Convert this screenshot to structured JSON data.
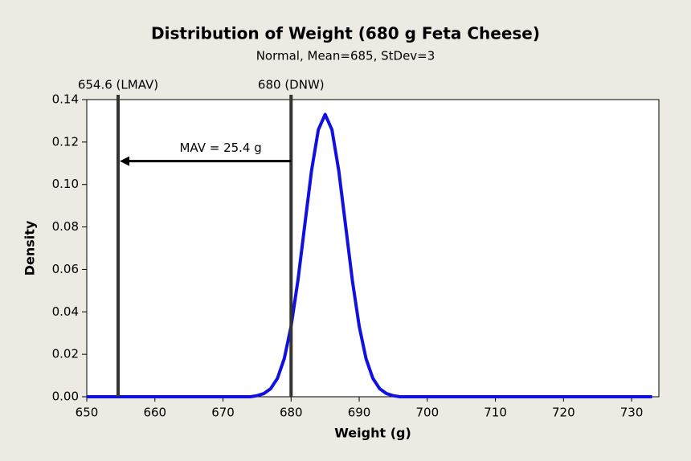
{
  "chart_data": {
    "type": "line",
    "title": "Distribution of Weight (680 g Feta Cheese)",
    "subtitle": "Normal, Mean=685, StDev=3",
    "x_label": "Weight (g)",
    "y_label": "Density",
    "color": "#1010e0",
    "x": [
      650,
      674,
      675,
      676,
      677,
      678,
      679,
      680,
      681,
      682,
      683,
      684,
      685,
      686,
      687,
      688,
      689,
      690,
      691,
      692,
      693,
      694,
      695,
      696,
      733
    ],
    "values": [
      0,
      0,
      0.0005,
      0.0015,
      0.0038,
      0.0087,
      0.018,
      0.0332,
      0.0547,
      0.0807,
      0.1065,
      0.1258,
      0.133,
      0.1258,
      0.1065,
      0.0807,
      0.0547,
      0.0332,
      0.018,
      0.0087,
      0.0038,
      0.0015,
      0.0005,
      0,
      0
    ],
    "xlim": [
      650,
      734
    ],
    "ylim": [
      0,
      0.14
    ],
    "xticks": [
      650,
      660,
      670,
      680,
      690,
      700,
      710,
      720,
      730
    ],
    "yticks": [
      {
        "value": 0,
        "label": "0.00"
      },
      0.02,
      0.04,
      0.06,
      0.08,
      {
        "value": 0.1,
        "label": "0.10"
      },
      0.12,
      0.14
    ],
    "reference_lines": [
      {
        "value": 654.6,
        "label": "654.6 (LMAV)"
      },
      {
        "value": 680,
        "label": "680 (DNW)"
      }
    ],
    "annotation": {
      "text": "MAV = 25.4 g",
      "y": 0.111
    }
  }
}
